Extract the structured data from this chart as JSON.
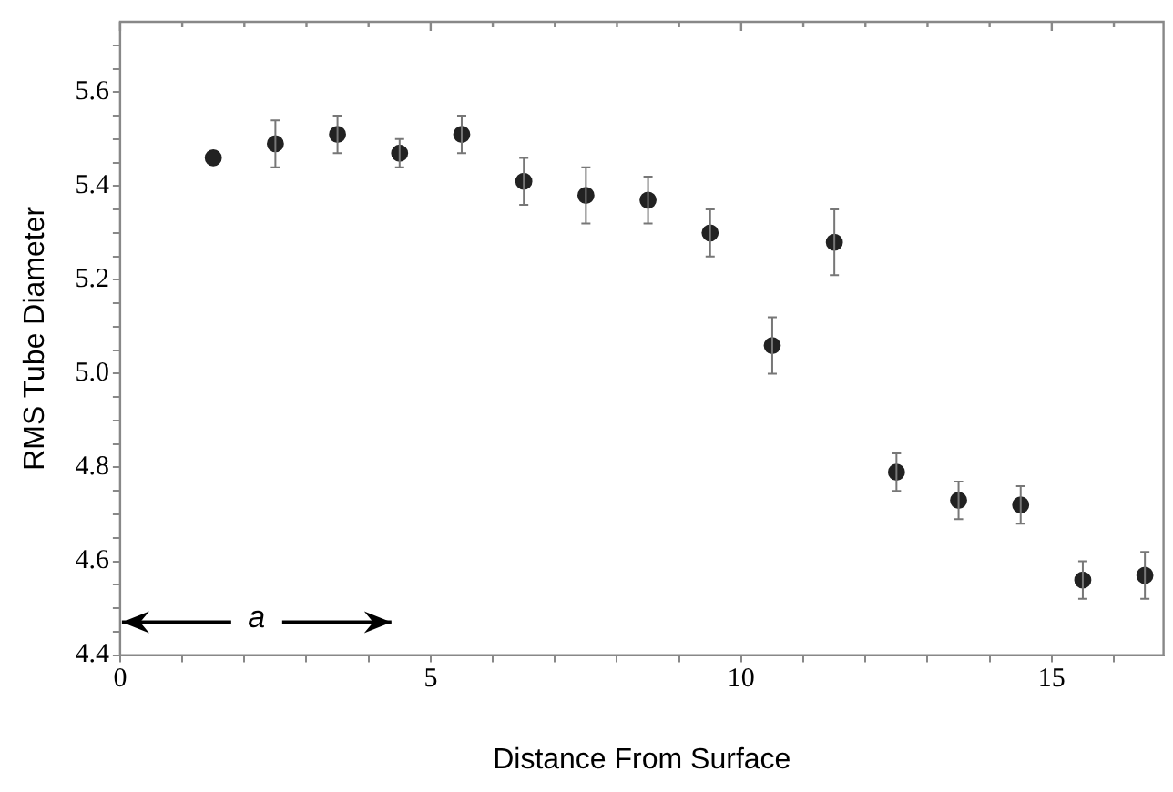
{
  "chart_data": {
    "type": "scatter",
    "xlabel": "Distance From Surface",
    "ylabel": "RMS Tube Diameter",
    "x": [
      1.5,
      2.5,
      3.5,
      4.5,
      5.5,
      6.5,
      7.5,
      8.5,
      9.5,
      10.5,
      11.5,
      12.5,
      13.5,
      14.5,
      15.5,
      16.5
    ],
    "series": [
      {
        "color": "#222222",
        "values": [
          5.46,
          5.49,
          5.51,
          5.47,
          5.51,
          5.41,
          5.38,
          5.37,
          5.3,
          5.06,
          5.28,
          4.79,
          4.73,
          4.72,
          4.56,
          4.57
        ],
        "errors": [
          null,
          0.05,
          0.04,
          0.03,
          0.04,
          0.05,
          0.06,
          0.05,
          0.05,
          0.06,
          0.07,
          0.04,
          0.04,
          0.04,
          0.04,
          0.05
        ]
      }
    ],
    "xlim": [
      0,
      16.8
    ],
    "xticks": [
      0,
      {
        "value": 1,
        "label": null
      },
      {
        "value": 2,
        "label": null
      },
      {
        "value": 3,
        "label": null
      },
      {
        "value": 4,
        "label": null
      },
      5,
      {
        "value": 6,
        "label": null
      },
      {
        "value": 7,
        "label": null
      },
      {
        "value": 8,
        "label": null
      },
      {
        "value": 9,
        "label": null
      },
      10,
      {
        "value": 11,
        "label": null
      },
      {
        "value": 12,
        "label": null
      },
      {
        "value": 13,
        "label": null
      },
      {
        "value": 14,
        "label": null
      },
      15,
      {
        "value": 16,
        "label": null
      }
    ],
    "ylim": [
      4.4,
      5.75
    ],
    "yticks": [
      {
        "value": 4.4,
        "label": "4.4"
      },
      {
        "value": 4.45,
        "label": null
      },
      {
        "value": 4.5,
        "label": null
      },
      {
        "value": 4.55,
        "label": null
      },
      {
        "value": 4.6,
        "label": "4.6"
      },
      {
        "value": 4.65,
        "label": null
      },
      {
        "value": 4.7,
        "label": null
      },
      {
        "value": 4.75,
        "label": null
      },
      {
        "value": 4.8,
        "label": "4.8"
      },
      {
        "value": 4.85,
        "label": null
      },
      {
        "value": 4.9,
        "label": null
      },
      {
        "value": 4.95,
        "label": null
      },
      {
        "value": 5.0,
        "label": "5.0"
      },
      {
        "value": 5.05,
        "label": null
      },
      {
        "value": 5.1,
        "label": null
      },
      {
        "value": 5.15,
        "label": null
      },
      {
        "value": 5.2,
        "label": "5.2"
      },
      {
        "value": 5.25,
        "label": null
      },
      {
        "value": 5.3,
        "label": null
      },
      {
        "value": 5.35,
        "label": null
      },
      {
        "value": 5.4,
        "label": "5.4"
      },
      {
        "value": 5.45,
        "label": null
      },
      {
        "value": 5.5,
        "label": null
      },
      {
        "value": 5.55,
        "label": null
      },
      {
        "value": 5.6,
        "label": "5.6"
      },
      {
        "value": 5.65,
        "label": null
      },
      {
        "value": 5.7,
        "label": null
      }
    ],
    "annotations": [
      "a"
    ],
    "marker": "circle",
    "legend": false,
    "grid": false
  }
}
